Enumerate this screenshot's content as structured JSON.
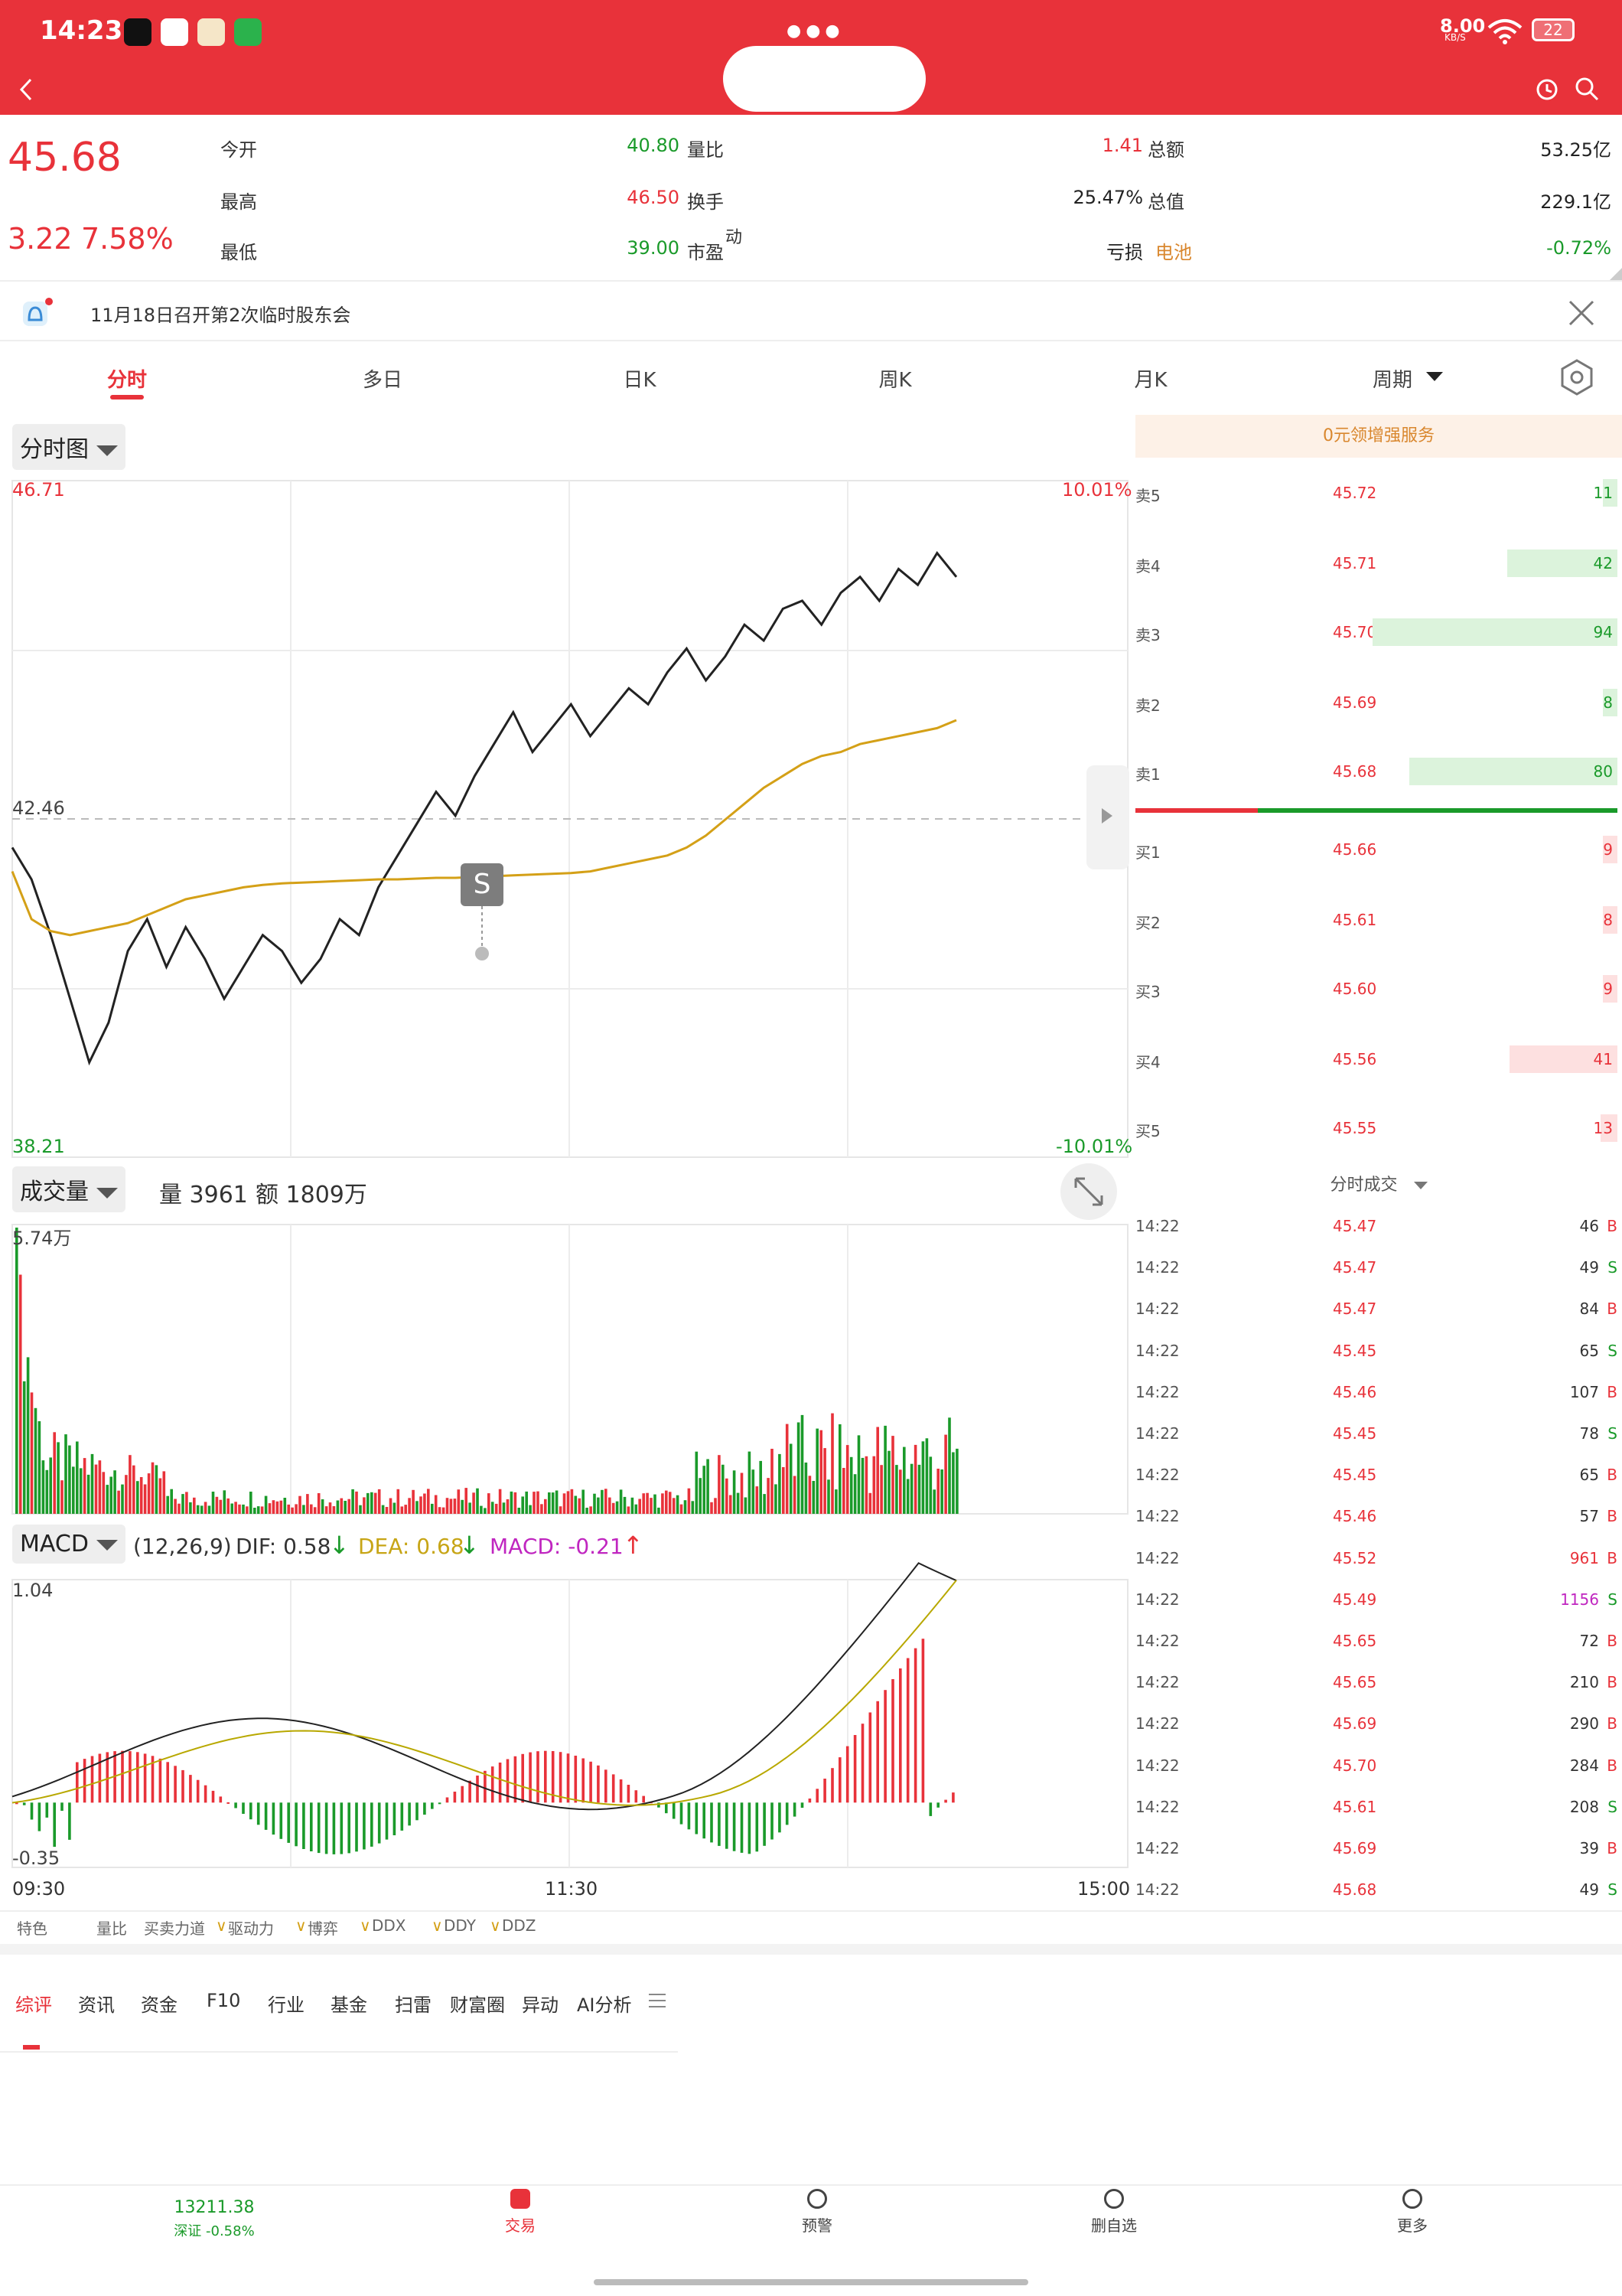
{
  "status_bar": {
    "time": "14:23",
    "net_speed": "8.00",
    "net_unit": "KB/S",
    "battery": "22",
    "center_dots": "●●●"
  },
  "quote": {
    "price": "45.68",
    "change": "3.22",
    "change_pct": "7.58%",
    "fields": [
      {
        "label": "今开",
        "value": "40.80",
        "color": "#1a9a2a"
      },
      {
        "label": "量比",
        "value": "1.41",
        "color": "#e8323a"
      },
      {
        "label": "总额",
        "value": "53.25亿",
        "color": "#222222"
      },
      {
        "label": "最高",
        "value": "46.50",
        "color": "#e8323a"
      },
      {
        "label": "换手",
        "value": "25.47%",
        "color": "#222222"
      },
      {
        "label": "总值",
        "value": "229.1亿",
        "color": "#222222"
      },
      {
        "label": "最低",
        "value": "39.00",
        "color": "#1a9a2a"
      },
      {
        "label": "市盈",
        "value": "亏损",
        "color": "#222222"
      },
      {
        "label": "电池",
        "value": "-0.72%",
        "color": "#1a9a2a"
      }
    ],
    "pe_suffix": "动"
  },
  "notice": {
    "text": "11月18日召开第2次临时股东会"
  },
  "tabs": [
    "分时",
    "多日",
    "日K",
    "周K",
    "月K",
    "周期"
  ],
  "active_tab": 0,
  "chart_header": {
    "mode_label": "分时图",
    "promo": "0元领增强服务"
  },
  "chart_data": [
    {
      "type": "line",
      "name": "intraday",
      "y_top": "46.71",
      "y_mid": "42.46",
      "y_bottom": "38.21",
      "pct_top": "10.01%",
      "pct_bottom": "-10.01%",
      "ylim": [
        38.21,
        46.71
      ],
      "x_labels": [
        "09:30",
        "11:30",
        "15:00"
      ],
      "marker": "S",
      "price": [
        42.1,
        41.7,
        41.0,
        40.2,
        39.4,
        39.9,
        40.8,
        41.2,
        40.6,
        41.1,
        40.7,
        40.2,
        40.6,
        41.0,
        40.8,
        40.4,
        40.7,
        41.2,
        41.0,
        41.6,
        42.0,
        42.4,
        42.8,
        42.5,
        43.0,
        43.4,
        43.8,
        43.3,
        43.6,
        43.9,
        43.5,
        43.8,
        44.1,
        43.9,
        44.3,
        44.6,
        44.2,
        44.5,
        44.9,
        44.7,
        45.1,
        45.2,
        44.9,
        45.3,
        45.5,
        45.2,
        45.6,
        45.4,
        45.8,
        45.5
      ],
      "average": [
        41.8,
        41.2,
        41.05,
        41.0,
        41.05,
        41.1,
        41.15,
        41.25,
        41.35,
        41.45,
        41.5,
        41.55,
        41.6,
        41.63,
        41.65,
        41.66,
        41.67,
        41.68,
        41.69,
        41.7,
        41.7,
        41.71,
        41.72,
        41.72,
        41.73,
        41.74,
        41.75,
        41.76,
        41.77,
        41.78,
        41.8,
        41.85,
        41.9,
        41.95,
        42.0,
        42.1,
        42.25,
        42.45,
        42.65,
        42.85,
        43.0,
        43.15,
        43.25,
        43.3,
        43.4,
        43.45,
        43.5,
        43.55,
        43.6,
        43.7
      ]
    },
    {
      "type": "bar",
      "name": "volume",
      "label": "成交量",
      "summary_vol": "量 3961",
      "summary_amt": "额 1809万",
      "y_max_label": "5.74万"
    },
    {
      "type": "line",
      "name": "macd",
      "label": "MACD",
      "params": "(12,26,9)",
      "dif": "DIF: 0.58",
      "dea": "DEA: 0.68",
      "macd": "MACD: -0.21",
      "y_top": "1.04",
      "y_bottom": "-0.35",
      "ylim": [
        -0.35,
        1.04
      ]
    }
  ],
  "order_book": {
    "asks": [
      {
        "label": "卖5",
        "price": "45.72",
        "vol": "11",
        "ratio": 0.04
      },
      {
        "label": "卖4",
        "price": "45.71",
        "vol": "42",
        "ratio": 0.45
      },
      {
        "label": "卖3",
        "price": "45.70",
        "vol": "94",
        "ratio": 1.0
      },
      {
        "label": "卖2",
        "price": "45.69",
        "vol": "8",
        "ratio": 0.03
      },
      {
        "label": "卖1",
        "price": "45.68",
        "vol": "80",
        "ratio": 0.85
      }
    ],
    "bids": [
      {
        "label": "买1",
        "price": "45.66",
        "vol": "9",
        "ratio": 0.04
      },
      {
        "label": "买2",
        "price": "45.61",
        "vol": "8",
        "ratio": 0.03
      },
      {
        "label": "买3",
        "price": "45.60",
        "vol": "9",
        "ratio": 0.04
      },
      {
        "label": "买4",
        "price": "45.56",
        "vol": "41",
        "ratio": 0.44
      },
      {
        "label": "买5",
        "price": "45.55",
        "vol": "13",
        "ratio": 0.07
      }
    ],
    "ticks_label": "分时成交",
    "ticks": [
      {
        "time": "14:22",
        "price": "45.47",
        "vol": "46",
        "dir": "B"
      },
      {
        "time": "14:22",
        "price": "45.47",
        "vol": "49",
        "dir": "S"
      },
      {
        "time": "14:22",
        "price": "45.47",
        "vol": "84",
        "dir": "B"
      },
      {
        "time": "14:22",
        "price": "45.45",
        "vol": "65",
        "dir": "S"
      },
      {
        "time": "14:22",
        "price": "45.46",
        "vol": "107",
        "dir": "B"
      },
      {
        "time": "14:22",
        "price": "45.45",
        "vol": "78",
        "dir": "S"
      },
      {
        "time": "14:22",
        "price": "45.45",
        "vol": "65",
        "dir": "B"
      },
      {
        "time": "14:22",
        "price": "45.46",
        "vol": "57",
        "dir": "B"
      },
      {
        "time": "14:22",
        "price": "45.52",
        "vol": "961",
        "dir": "B"
      },
      {
        "time": "14:22",
        "price": "45.49",
        "vol": "1156",
        "dir": "S"
      },
      {
        "time": "14:22",
        "price": "45.65",
        "vol": "72",
        "dir": "B"
      },
      {
        "time": "14:22",
        "price": "45.65",
        "vol": "210",
        "dir": "B"
      },
      {
        "time": "14:22",
        "price": "45.69",
        "vol": "290",
        "dir": "B"
      },
      {
        "time": "14:22",
        "price": "45.70",
        "vol": "284",
        "dir": "B"
      },
      {
        "time": "14:22",
        "price": "45.61",
        "vol": "208",
        "dir": "S"
      },
      {
        "time": "14:22",
        "price": "45.69",
        "vol": "39",
        "dir": "B"
      },
      {
        "time": "14:22",
        "price": "45.68",
        "vol": "49",
        "dir": "S"
      }
    ]
  },
  "indicators": [
    "特色",
    "量比",
    "买卖力道",
    "驱动力",
    "博弈",
    "DDX",
    "DDY",
    "DDZ"
  ],
  "bottom_tabs": [
    "综评",
    "资讯",
    "资金",
    "F10",
    "行业",
    "基金",
    "扫雷",
    "财富圈",
    "异动",
    "AI分析"
  ],
  "bottom_nav": {
    "index_value": "13211.38",
    "index_change": "深证 -0.58%",
    "items": [
      "交易",
      "预警",
      "删自选",
      "更多"
    ]
  },
  "colors": {
    "up": "#e8323a",
    "down": "#1a9a2a",
    "header": "#e8323a",
    "avg_line": "#d4a017"
  }
}
